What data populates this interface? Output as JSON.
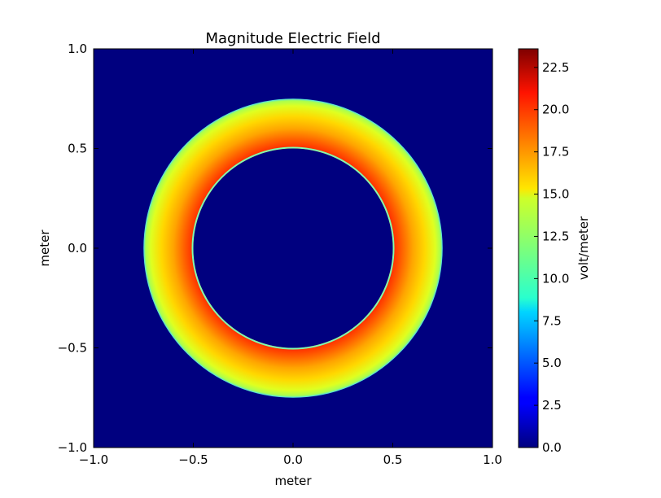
{
  "chart_data": {
    "type": "heatmap",
    "title": "Magnitude Electric Field",
    "xlabel": "meter",
    "ylabel": "meter",
    "xlim": [
      -1.0,
      1.0
    ],
    "ylim": [
      -1.0,
      1.0
    ],
    "xticks": [
      -1.0,
      -0.5,
      0.0,
      0.5,
      1.0
    ],
    "yticks": [
      -1.0,
      -0.5,
      0.0,
      0.5,
      1.0
    ],
    "xtick_labels": [
      "−1.0",
      "−0.5",
      "0.0",
      "0.5",
      "1.0"
    ],
    "ytick_labels": [
      "−1.0",
      "−0.5",
      "0.0",
      "0.5",
      "1.0"
    ],
    "colormap": "jet",
    "field": {
      "inner_radius": 0.5,
      "outer_radius": 0.75,
      "max_value_at_inner_radius": 21.0,
      "value_at_outer_radius": 14.0,
      "value_outside": 0.0
    },
    "colorbar": {
      "label": "volt/meter",
      "range": [
        0.0,
        23.6
      ],
      "ticks": [
        0.0,
        2.5,
        5.0,
        7.5,
        10.0,
        12.5,
        15.0,
        17.5,
        20.0,
        22.5
      ],
      "tick_labels": [
        "0.0",
        "2.5",
        "5.0",
        "7.5",
        "10.0",
        "12.5",
        "15.0",
        "17.5",
        "20.0",
        "22.5"
      ]
    }
  }
}
